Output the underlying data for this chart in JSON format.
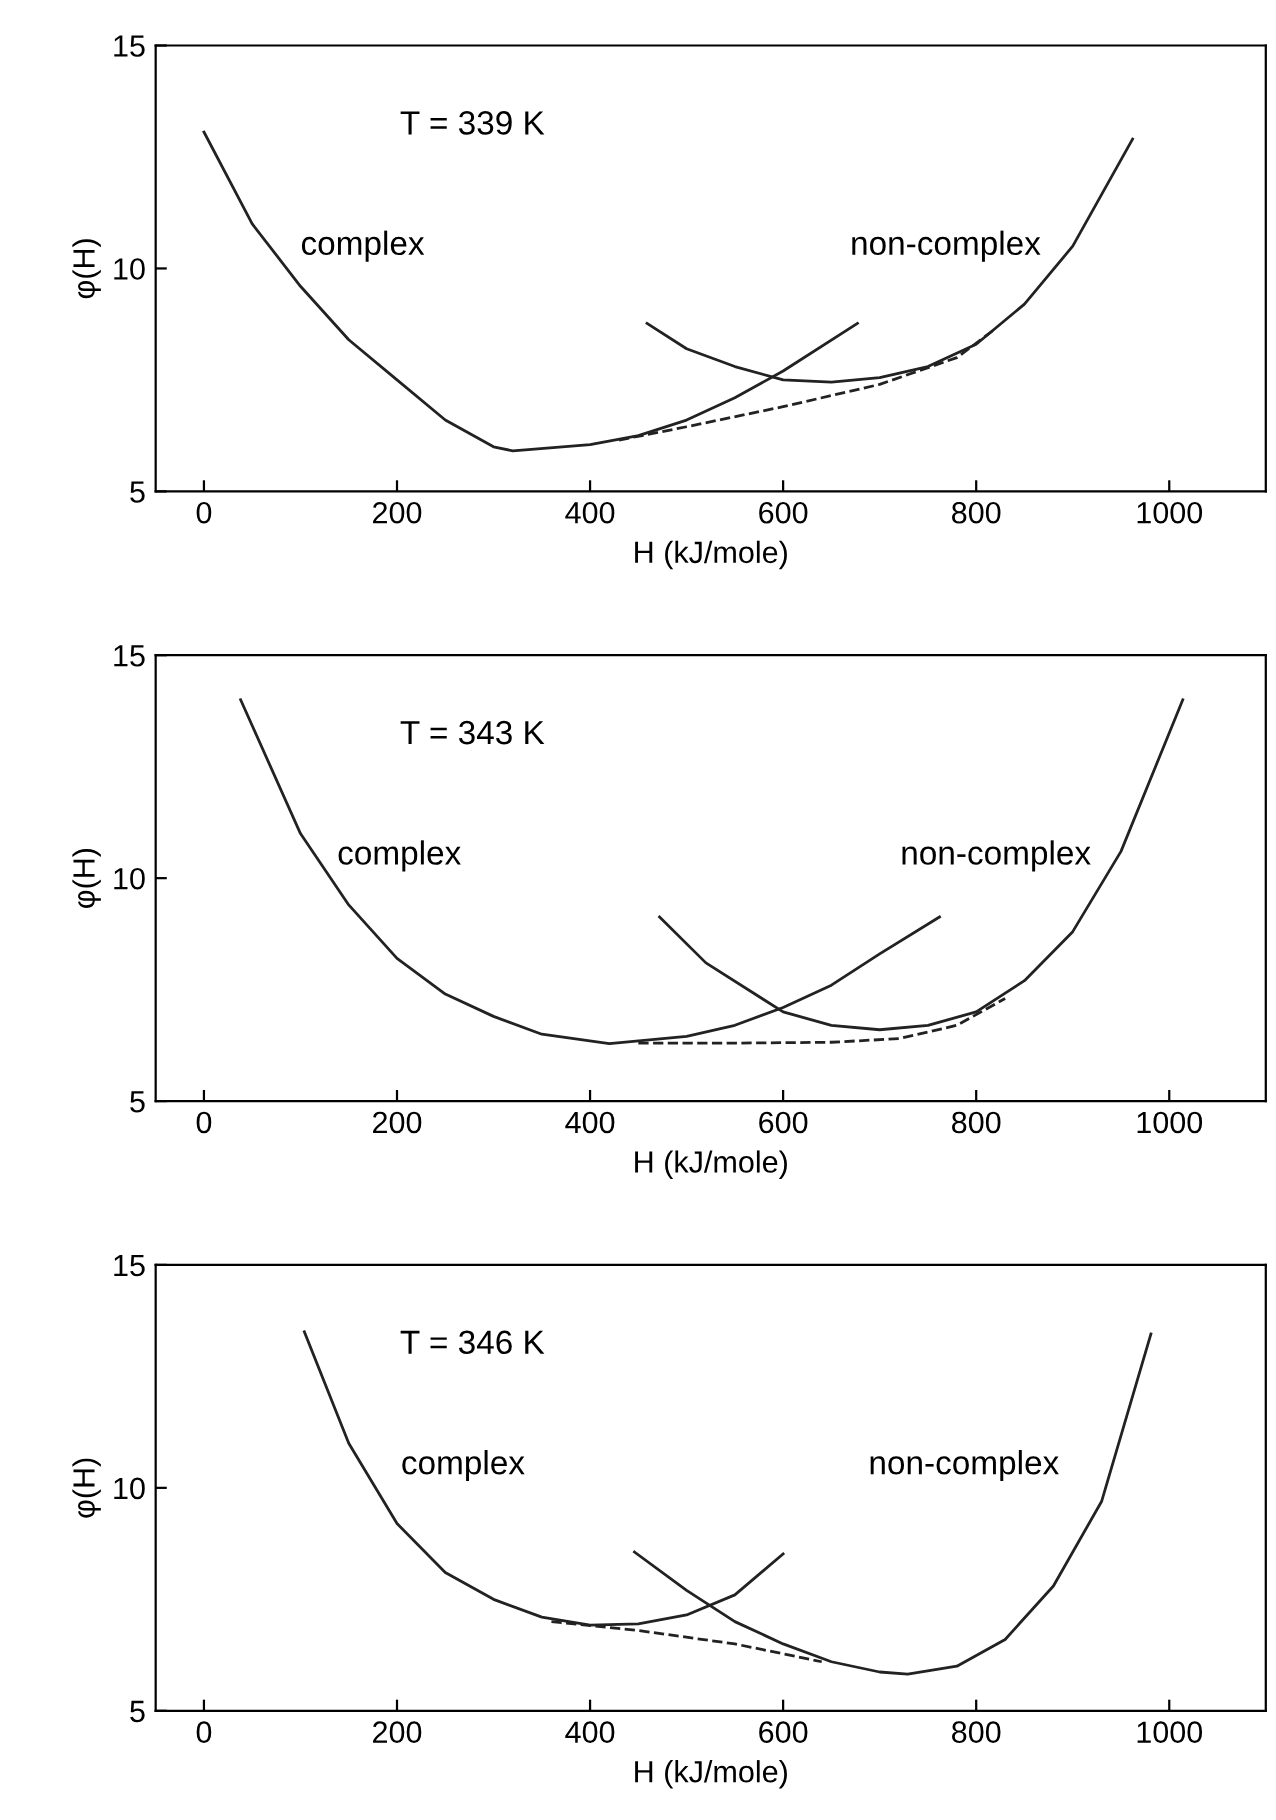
{
  "chart_data": [
    {
      "type": "line",
      "xlabel": "H (kJ/mole)",
      "ylabel": "φ(H)",
      "annotations": [
        "T = 339 K"
      ],
      "xlim": [
        -50,
        1100
      ],
      "ylim": [
        5,
        15
      ],
      "xticks": [
        0,
        200,
        400,
        600,
        800,
        1000
      ],
      "yticks": [
        5,
        10,
        15
      ],
      "grid": false,
      "legend": false,
      "series": [
        {
          "name": "complex",
          "color": "#222222",
          "line_style": "solid",
          "x": [
            0,
            50,
            100,
            150,
            200,
            250,
            300,
            320,
            400,
            450,
            500,
            550,
            600,
            677
          ],
          "values": [
            13.06,
            11.0,
            9.6,
            8.4,
            7.5,
            6.6,
            6.0,
            5.91,
            6.05,
            6.25,
            6.6,
            7.1,
            7.7,
            8.77
          ]
        },
        {
          "name": "non-complex",
          "color": "#222222",
          "line_style": "solid",
          "x": [
            459,
            500,
            550,
            600,
            650,
            700,
            750,
            800,
            850,
            900,
            962
          ],
          "values": [
            8.77,
            8.2,
            7.8,
            7.5,
            7.45,
            7.55,
            7.8,
            8.3,
            9.2,
            10.5,
            12.9
          ]
        },
        {
          "color": "#222222",
          "line_style": "dashed",
          "x": [
            430,
            500,
            600,
            700,
            780,
            820
          ],
          "values": [
            6.15,
            6.45,
            6.9,
            7.4,
            8.0,
            8.65
          ]
        }
      ]
    },
    {
      "type": "line",
      "xlabel": "H (kJ/mole)",
      "ylabel": "φ(H)",
      "annotations": [
        "T = 343 K"
      ],
      "xlim": [
        -50,
        1100
      ],
      "ylim": [
        5,
        15
      ],
      "xticks": [
        0,
        200,
        400,
        600,
        800,
        1000
      ],
      "yticks": [
        5,
        10,
        15
      ],
      "grid": false,
      "legend": false,
      "series": [
        {
          "name": "complex",
          "color": "#222222",
          "line_style": "solid",
          "x": [
            38,
            100,
            150,
            200,
            250,
            300,
            350,
            420,
            500,
            550,
            600,
            650,
            700,
            762
          ],
          "values": [
            14.0,
            11.0,
            9.4,
            8.2,
            7.4,
            6.9,
            6.5,
            6.29,
            6.45,
            6.7,
            7.1,
            7.6,
            8.3,
            9.13
          ]
        },
        {
          "name": "non-complex",
          "color": "#222222",
          "line_style": "solid",
          "x": [
            472,
            520,
            600,
            650,
            700,
            750,
            800,
            850,
            900,
            950,
            1014
          ],
          "values": [
            9.13,
            8.1,
            7.0,
            6.7,
            6.6,
            6.7,
            7.0,
            7.7,
            8.8,
            10.6,
            14.0
          ]
        },
        {
          "color": "#222222",
          "line_style": "dashed",
          "x": [
            450,
            550,
            650,
            720,
            780,
            830
          ],
          "values": [
            6.3,
            6.3,
            6.32,
            6.4,
            6.7,
            7.3
          ]
        }
      ]
    },
    {
      "type": "line",
      "xlabel": "H (kJ/mole)",
      "ylabel": "φ(H)",
      "annotations": [
        "T = 346 K"
      ],
      "xlim": [
        -50,
        1100
      ],
      "ylim": [
        5,
        15
      ],
      "xticks": [
        0,
        200,
        400,
        600,
        800,
        1000
      ],
      "yticks": [
        5,
        10,
        15
      ],
      "grid": false,
      "legend": false,
      "series": [
        {
          "name": "complex",
          "color": "#222222",
          "line_style": "solid",
          "x": [
            104,
            150,
            200,
            250,
            300,
            350,
            400,
            450,
            500,
            550,
            600
          ],
          "values": [
            13.5,
            11.0,
            9.2,
            8.1,
            7.5,
            7.1,
            6.92,
            6.95,
            7.15,
            7.6,
            8.52
          ]
        },
        {
          "name": "non-complex",
          "color": "#222222",
          "line_style": "solid",
          "x": [
            446,
            500,
            550,
            600,
            650,
            700,
            729,
            780,
            830,
            880,
            930,
            981
          ],
          "values": [
            8.56,
            7.7,
            7.0,
            6.5,
            6.1,
            5.87,
            5.82,
            6.0,
            6.6,
            7.8,
            9.7,
            13.45
          ]
        },
        {
          "color": "#222222",
          "line_style": "dashed",
          "x": [
            360,
            450,
            550,
            640
          ],
          "values": [
            7.0,
            6.8,
            6.5,
            6.1
          ]
        }
      ]
    }
  ]
}
